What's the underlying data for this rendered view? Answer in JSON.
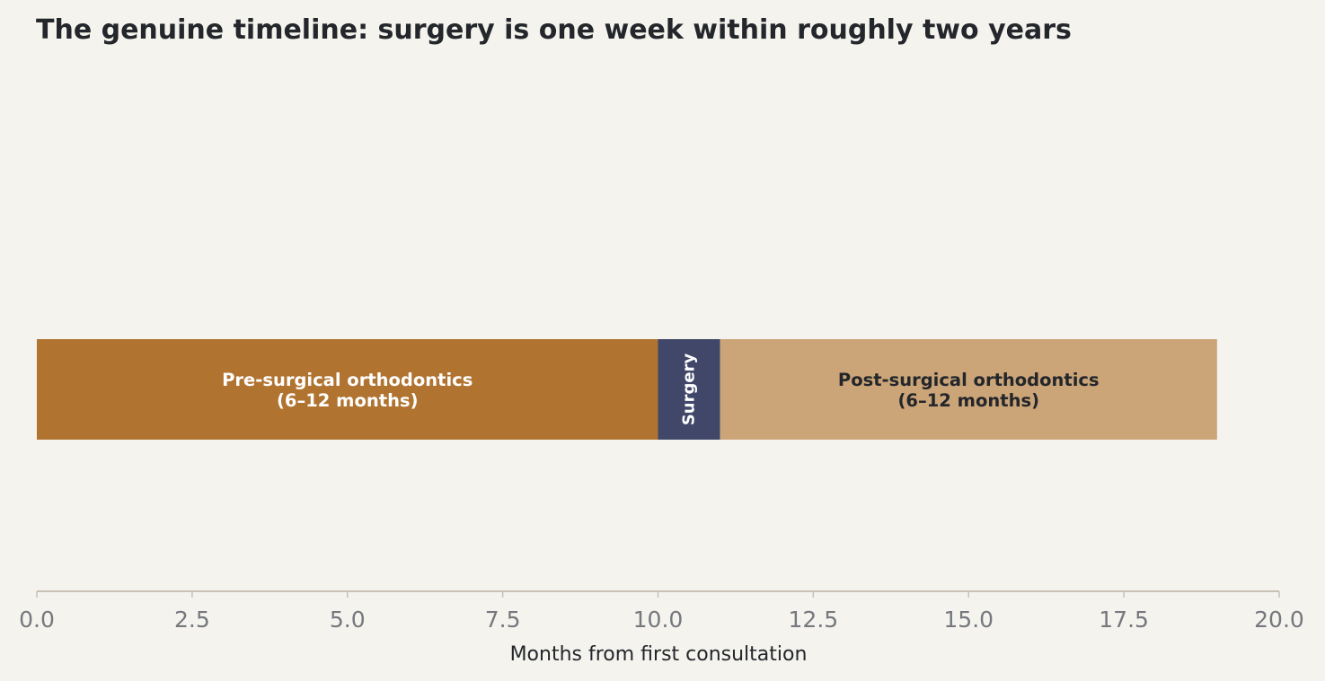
{
  "chart_data": {
    "type": "bar",
    "orientation": "horizontal-stacked",
    "title": "The genuine timeline: surgery is one week within roughly two years",
    "xlabel": "Months from first consultation",
    "ylabel": "",
    "xlim": [
      0,
      20
    ],
    "xticks": [
      "0.0",
      "2.5",
      "5.0",
      "7.5",
      "10.0",
      "12.5",
      "15.0",
      "17.5",
      "20.0"
    ],
    "grid": false,
    "segments": [
      {
        "name": "Pre-surgical orthodontics",
        "label_lines": [
          "Pre-surgical orthodontics",
          "(6–12 months)"
        ],
        "start": 0,
        "end": 10,
        "color": "#b07330",
        "text_color": "#ffffff"
      },
      {
        "name": "Surgery",
        "label_lines": [
          "Surgery"
        ],
        "start": 10,
        "end": 11,
        "color": "#404769",
        "text_color": "#ffffff",
        "vertical_label": true
      },
      {
        "name": "Post-surgical orthodontics",
        "label_lines": [
          "Post-surgical orthodontics",
          "(6–12 months)"
        ],
        "start": 11,
        "end": 19,
        "color": "#cba478",
        "text_color": "#23262a"
      }
    ],
    "colors": {
      "background": "#f4f3ee",
      "axis": "#c8c2b4",
      "tick_text": "#75787c",
      "title_text": "#23262a"
    }
  }
}
